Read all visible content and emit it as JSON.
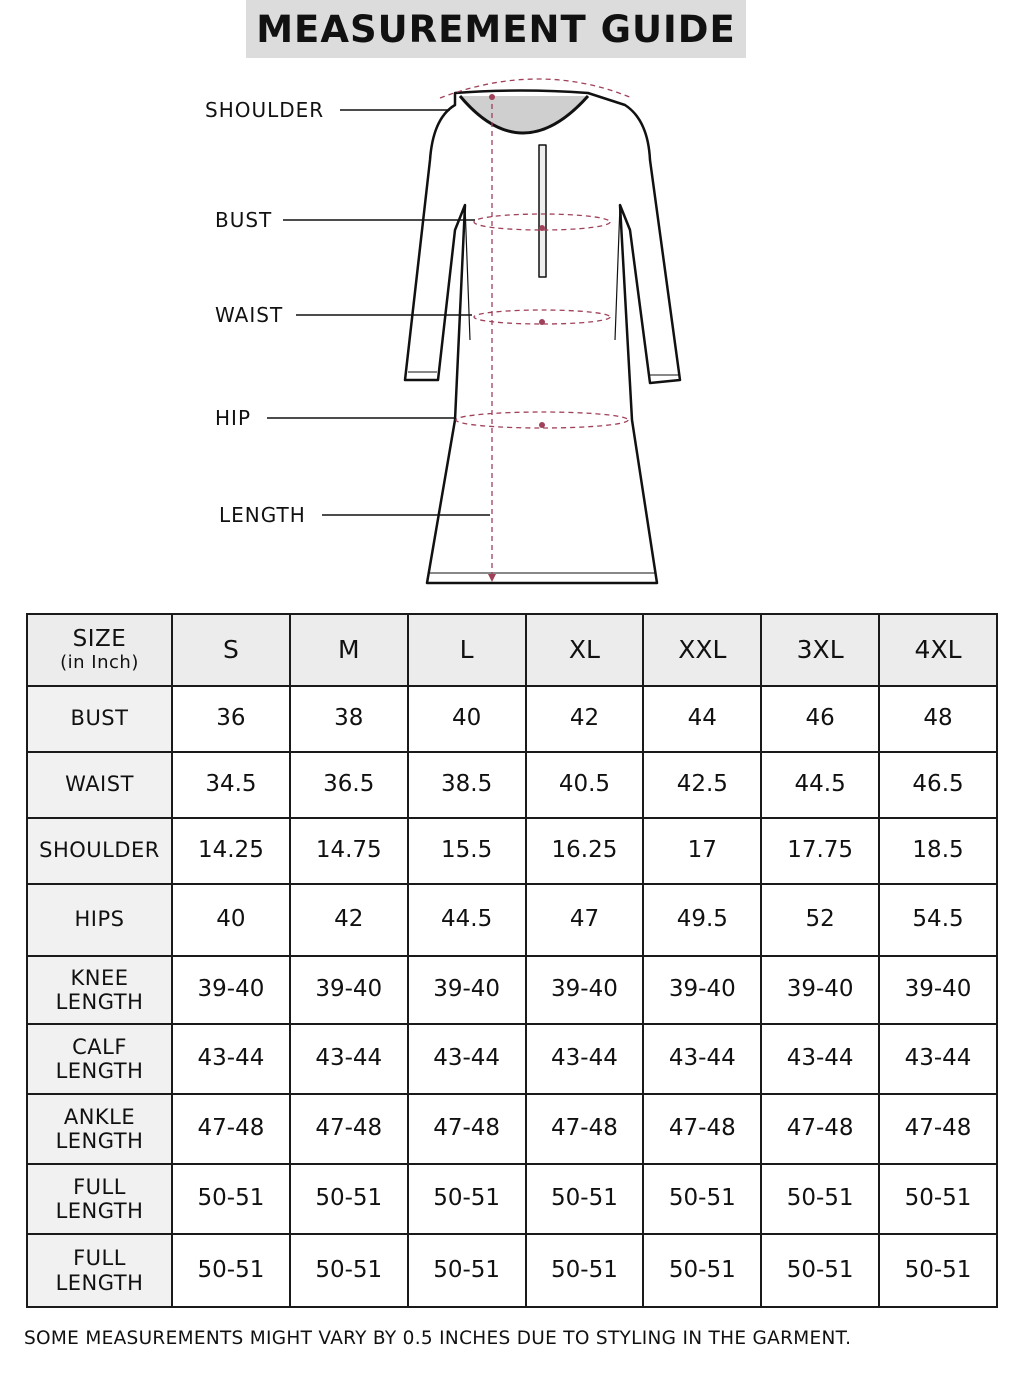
{
  "title": "MEASUREMENT GUIDE",
  "diagram_labels": [
    "SHOULDER",
    "BUST",
    "WAIST",
    "HIP",
    "LENGTH"
  ],
  "accent_color": "#a0415a",
  "table": {
    "corner": {
      "label": "SIZE",
      "sub": "(in Inch)"
    },
    "sizes": [
      "S",
      "M",
      "L",
      "XL",
      "XXL",
      "3XL",
      "4XL"
    ],
    "rows": [
      {
        "label": "BUST",
        "values": [
          "36",
          "38",
          "40",
          "42",
          "44",
          "46",
          "48"
        ]
      },
      {
        "label": "WAIST",
        "values": [
          "34.5",
          "36.5",
          "38.5",
          "40.5",
          "42.5",
          "44.5",
          "46.5"
        ]
      },
      {
        "label": "SHOULDER",
        "values": [
          "14.25",
          "14.75",
          "15.5",
          "16.25",
          "17",
          "17.75",
          "18.5"
        ]
      },
      {
        "label": "HIPS",
        "values": [
          "40",
          "42",
          "44.5",
          "47",
          "49.5",
          "52",
          "54.5"
        ]
      },
      {
        "label": "KNEE LENGTH",
        "values": [
          "39-40",
          "39-40",
          "39-40",
          "39-40",
          "39-40",
          "39-40",
          "39-40"
        ]
      },
      {
        "label": "CALF LENGTH",
        "values": [
          "43-44",
          "43-44",
          "43-44",
          "43-44",
          "43-44",
          "43-44",
          "43-44"
        ]
      },
      {
        "label": "ANKLE LENGTH",
        "values": [
          "47-48",
          "47-48",
          "47-48",
          "47-48",
          "47-48",
          "47-48",
          "47-48"
        ]
      },
      {
        "label": "FULL LENGTH",
        "values": [
          "50-51",
          "50-51",
          "50-51",
          "50-51",
          "50-51",
          "50-51",
          "50-51"
        ]
      },
      {
        "label": "FULL LENGTH",
        "values": [
          "50-51",
          "50-51",
          "50-51",
          "50-51",
          "50-51",
          "50-51",
          "50-51"
        ]
      }
    ]
  },
  "note": "SOME MEASUREMENTS MIGHT VARY BY 0.5 INCHES DUE TO STYLING IN THE GARMENT."
}
